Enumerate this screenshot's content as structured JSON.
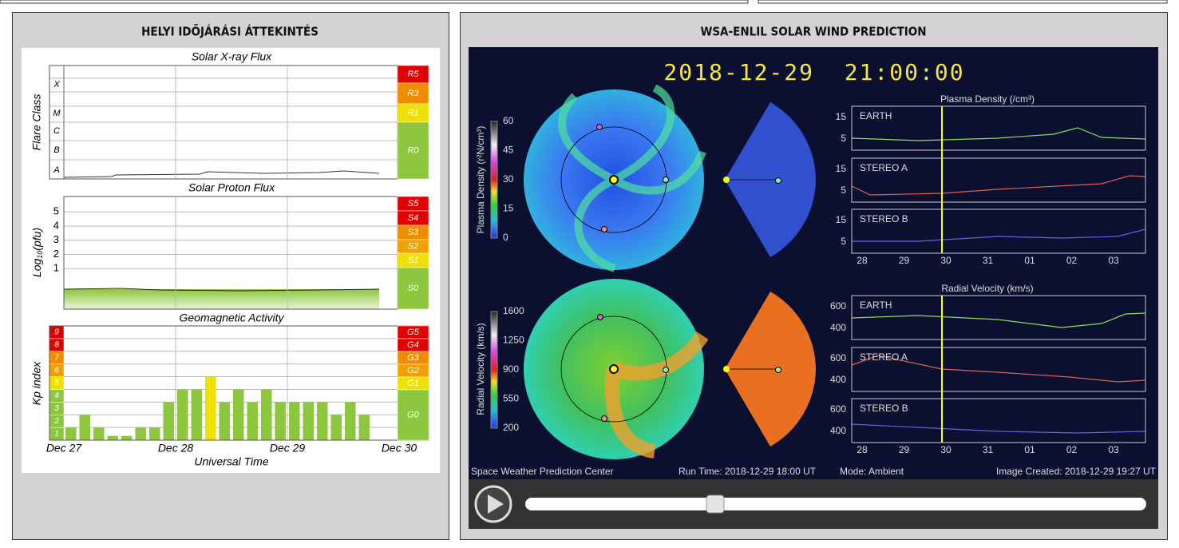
{
  "left_panel": {
    "title": "HELYI IDŐJÁRÁSI ÁTTEKINTÉS",
    "xray": {
      "title": "Solar X-ray Flux",
      "ylabel": "Flare Class",
      "classes": [
        "X",
        "M",
        "C",
        "B",
        "A"
      ],
      "scale": [
        {
          "label": "R5",
          "color": "#e00000"
        },
        {
          "label": "R3",
          "color": "#f08c00"
        },
        {
          "label": "R1",
          "color": "#f0e000"
        },
        {
          "label": "R0",
          "color": "#8dc63f"
        }
      ]
    },
    "proton": {
      "title": "Solar Proton Flux",
      "ylabel": {
        "main": "Log",
        "sub": "10",
        "unit": "(pfu)"
      },
      "yticks": [
        5,
        4,
        3,
        2,
        1
      ],
      "scale": [
        {
          "label": "S5",
          "color": "#e00000"
        },
        {
          "label": "S4",
          "color": "#e00000"
        },
        {
          "label": "S3",
          "color": "#f08c00"
        },
        {
          "label": "S2",
          "color": "#f0a000"
        },
        {
          "label": "S1",
          "color": "#f0e000"
        },
        {
          "label": "S0",
          "color": "#8dc63f"
        }
      ]
    },
    "geomagnetic": {
      "title": "Geomagnetic Activity",
      "ylabel": "Kp index",
      "levels": [
        {
          "value": 1,
          "color": "#8dc63f"
        },
        {
          "value": 2,
          "color": "#8dc63f"
        },
        {
          "value": 3,
          "color": "#8dc63f"
        },
        {
          "value": 4,
          "color": "#8dc63f"
        },
        {
          "value": 5,
          "color": "#f0e000"
        },
        {
          "value": 6,
          "color": "#f0a000"
        },
        {
          "value": 7,
          "color": "#f08c00"
        },
        {
          "value": 8,
          "color": "#e00000"
        },
        {
          "value": 9,
          "color": "#e00000"
        }
      ],
      "scale": [
        {
          "label": "G5",
          "color": "#e00000"
        },
        {
          "label": "G4",
          "color": "#e00000"
        },
        {
          "label": "G3",
          "color": "#f08c00"
        },
        {
          "label": "G2",
          "color": "#f0a000"
        },
        {
          "label": "G1",
          "color": "#f0e000"
        },
        {
          "label": "G0",
          "color": "#8dc63f"
        }
      ],
      "kp": [
        1,
        2,
        1,
        0.33,
        0.33,
        1,
        1,
        3,
        4,
        4,
        5,
        3,
        4,
        3,
        4,
        3,
        3,
        3,
        3,
        2,
        3,
        2
      ]
    },
    "xticks": [
      "Dec 27",
      "Dec 28",
      "Dec 29",
      "Dec 30"
    ],
    "xlabel": "Universal Time"
  },
  "right_panel": {
    "title": "WSA-ENLIL SOLAR WIND PREDICTION",
    "timestamp": "2018-12-29  21:00:00",
    "density_colorbar": {
      "label": "Plasma Density (r²N/cm³)",
      "ticks": [
        60,
        45,
        30,
        15,
        0
      ]
    },
    "velocity_colorbar": {
      "label": "Radial Velocity (km/s)",
      "ticks": [
        1600,
        1250,
        900,
        550,
        200
      ]
    },
    "density_plot": {
      "title": "Plasma Density (/cm³)",
      "rows": [
        {
          "name": "EARTH",
          "yticks": [
            15,
            5
          ]
        },
        {
          "name": "STEREO A",
          "yticks": [
            15,
            5
          ]
        },
        {
          "name": "STEREO B",
          "yticks": [
            15,
            5
          ]
        }
      ],
      "xticks": [
        "28",
        "29",
        "30",
        "31",
        "01",
        "02",
        "03"
      ]
    },
    "velocity_plot": {
      "title": "Radial Velocity (km/s)",
      "rows": [
        {
          "name": "EARTH",
          "yticks": [
            600,
            400
          ]
        },
        {
          "name": "STEREO A",
          "yticks": [
            600,
            400
          ]
        },
        {
          "name": "STEREO B",
          "yticks": [
            600,
            400
          ]
        }
      ],
      "xticks": [
        "28",
        "29",
        "30",
        "31",
        "01",
        "02",
        "03"
      ]
    },
    "footer": {
      "source": "Space Weather Prediction Center",
      "run_time": "Run Time: 2018-12-29 18:00 UT",
      "mode": "Mode: Ambient",
      "created": "Image Created: 2018-12-29 19:27 UT"
    }
  }
}
